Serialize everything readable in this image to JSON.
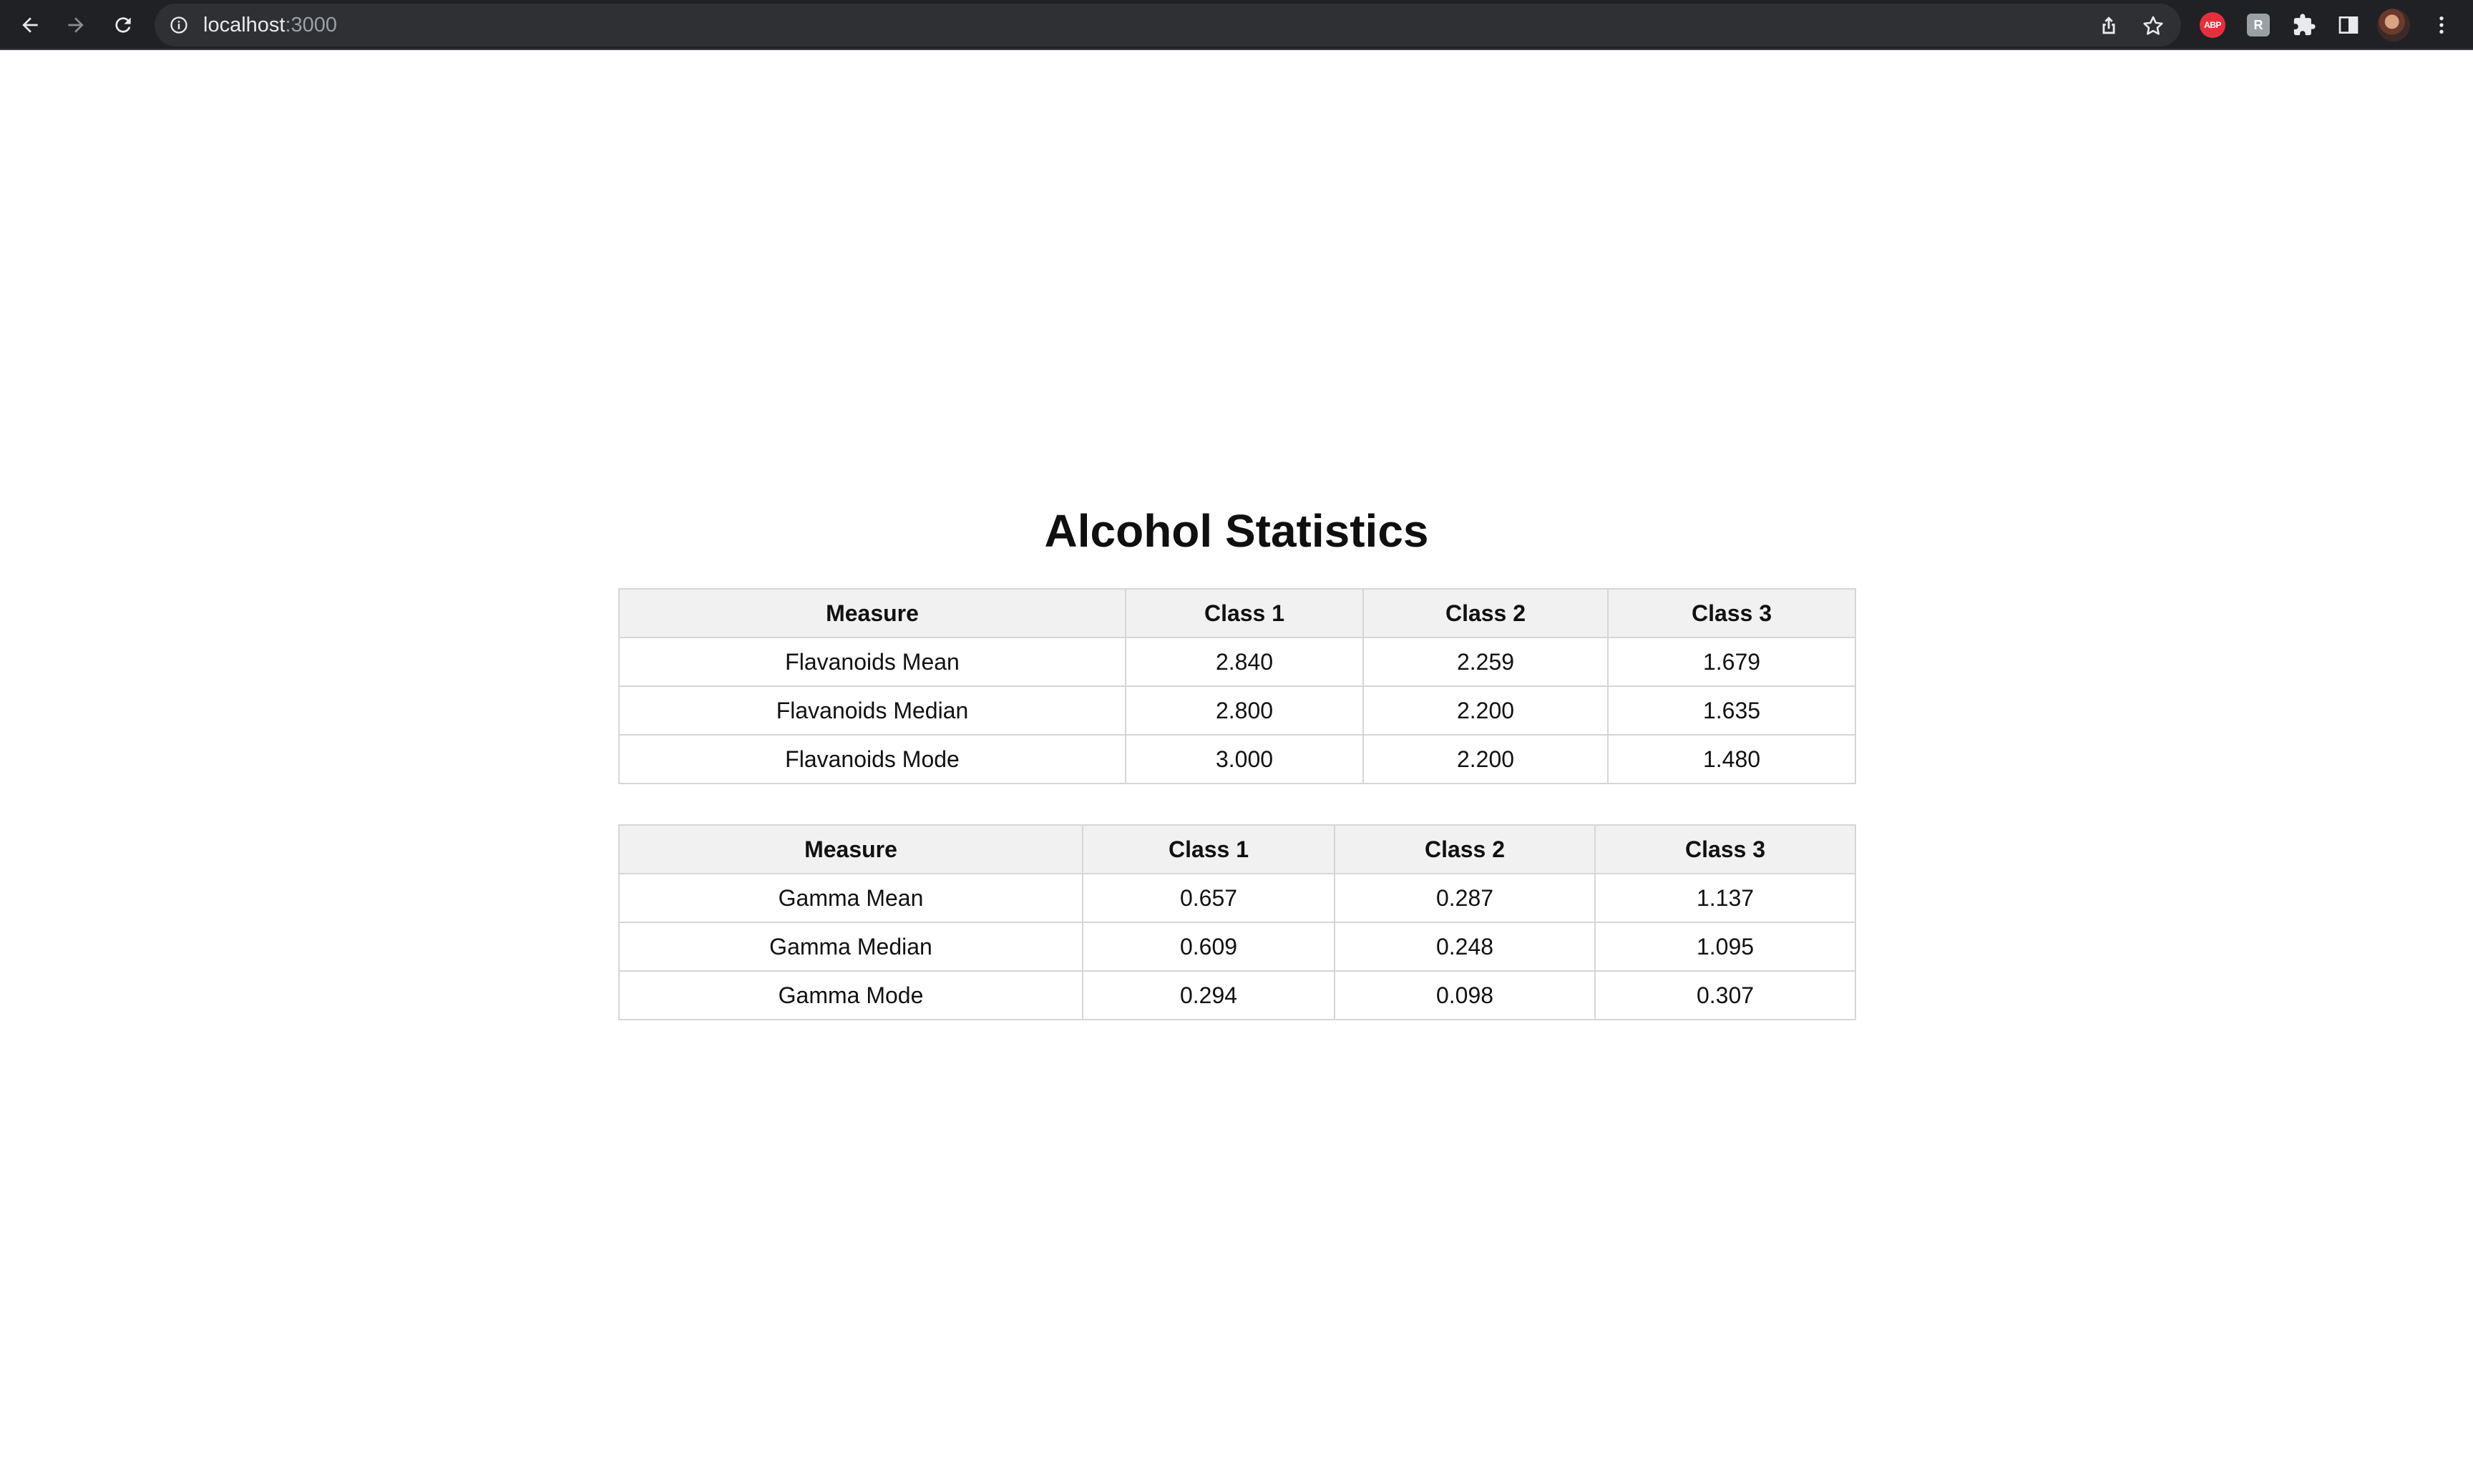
{
  "browser": {
    "url_host": "localhost",
    "url_port": ":3000",
    "icons": {
      "back": "back-arrow-icon",
      "forward": "forward-arrow-icon",
      "reload": "reload-icon",
      "info": "info-icon",
      "share": "share-icon",
      "bookmark": "star-icon",
      "adblock": "abp-extension-icon",
      "extension": "extension-icon",
      "puzzle": "puzzle-icon",
      "sidepanel": "side-panel-icon",
      "avatar": "avatar",
      "menu": "kebab-menu-icon"
    },
    "adblock_label": "ABP",
    "ext_label": "R"
  },
  "page": {
    "title": "Alcohol Statistics"
  },
  "tables": {
    "flavanoids": {
      "headers": [
        "Measure",
        "Class 1",
        "Class 2",
        "Class 3"
      ],
      "rows": [
        [
          "Flavanoids Mean",
          "2.840",
          "2.259",
          "1.679"
        ],
        [
          "Flavanoids Median",
          "2.800",
          "2.200",
          "1.635"
        ],
        [
          "Flavanoids Mode",
          "3.000",
          "2.200",
          "1.480"
        ]
      ]
    },
    "gamma": {
      "headers": [
        "Measure",
        "Class 1",
        "Class 2",
        "Class 3"
      ],
      "rows": [
        [
          "Gamma Mean",
          "0.657",
          "0.287",
          "1.137"
        ],
        [
          "Gamma Median",
          "0.609",
          "0.248",
          "1.095"
        ],
        [
          "Gamma Mode",
          "0.294",
          "0.098",
          "0.307"
        ]
      ]
    }
  },
  "colors": {
    "toolbar_bg": "#202124",
    "omnibox_bg": "#2f3033",
    "header_bg": "#f1f1f1",
    "border": "#d6d6d6",
    "abp_red": "#e5303c"
  }
}
